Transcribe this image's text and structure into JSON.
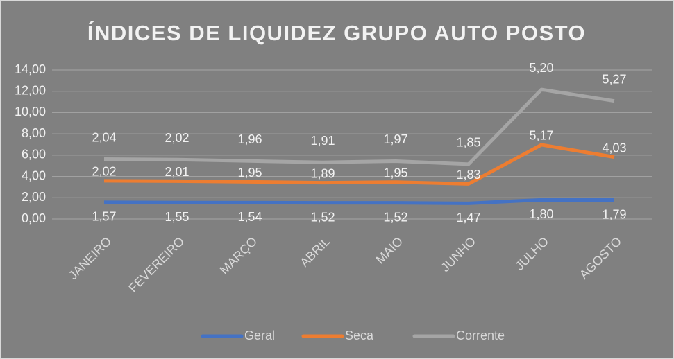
{
  "chart_data": {
    "type": "line",
    "stacked": true,
    "title": "ÍNDICES DE LIQUIDEZ GRUPO AUTO POSTO",
    "categories": [
      "JANEIRO",
      "FEVEREIRO",
      "MARÇO",
      "ABRIL",
      "MAIO",
      "JUNHO",
      "JULHO",
      "AGOSTO"
    ],
    "series": [
      {
        "name": "Geral",
        "color": "#4472c4",
        "values": [
          1.57,
          1.55,
          1.54,
          1.52,
          1.52,
          1.47,
          1.8,
          1.79
        ],
        "value_labels": [
          "1,57",
          "1,55",
          "1,54",
          "1,52",
          "1,52",
          "1,47",
          "1,80",
          "1,79"
        ]
      },
      {
        "name": "Seca",
        "color": "#ed7d31",
        "values": [
          2.02,
          2.01,
          1.95,
          1.89,
          1.95,
          1.83,
          5.17,
          4.03
        ],
        "value_labels": [
          "2,02",
          "2,01",
          "1,95",
          "1,89",
          "1,95",
          "1,83",
          "5,17",
          "4,03"
        ]
      },
      {
        "name": "Corrente",
        "color": "#a5a5a5",
        "values": [
          2.04,
          2.02,
          1.96,
          1.91,
          1.97,
          1.85,
          5.2,
          5.27
        ],
        "value_labels": [
          "2,04",
          "2,02",
          "1,96",
          "1,91",
          "1,97",
          "1,85",
          "5,20",
          "5,27"
        ]
      }
    ],
    "ylim": [
      0,
      14
    ],
    "yticks": [
      {
        "value": 0,
        "label": "0,00"
      },
      {
        "value": 2,
        "label": "2,00"
      },
      {
        "value": 4,
        "label": "4,00"
      },
      {
        "value": 6,
        "label": "6,00"
      },
      {
        "value": 8,
        "label": "8,00"
      },
      {
        "value": 10,
        "label": "10,00"
      },
      {
        "value": 12,
        "label": "12,00"
      },
      {
        "value": 14,
        "label": "14,00"
      }
    ],
    "grid": true,
    "legend": "bottom"
  }
}
